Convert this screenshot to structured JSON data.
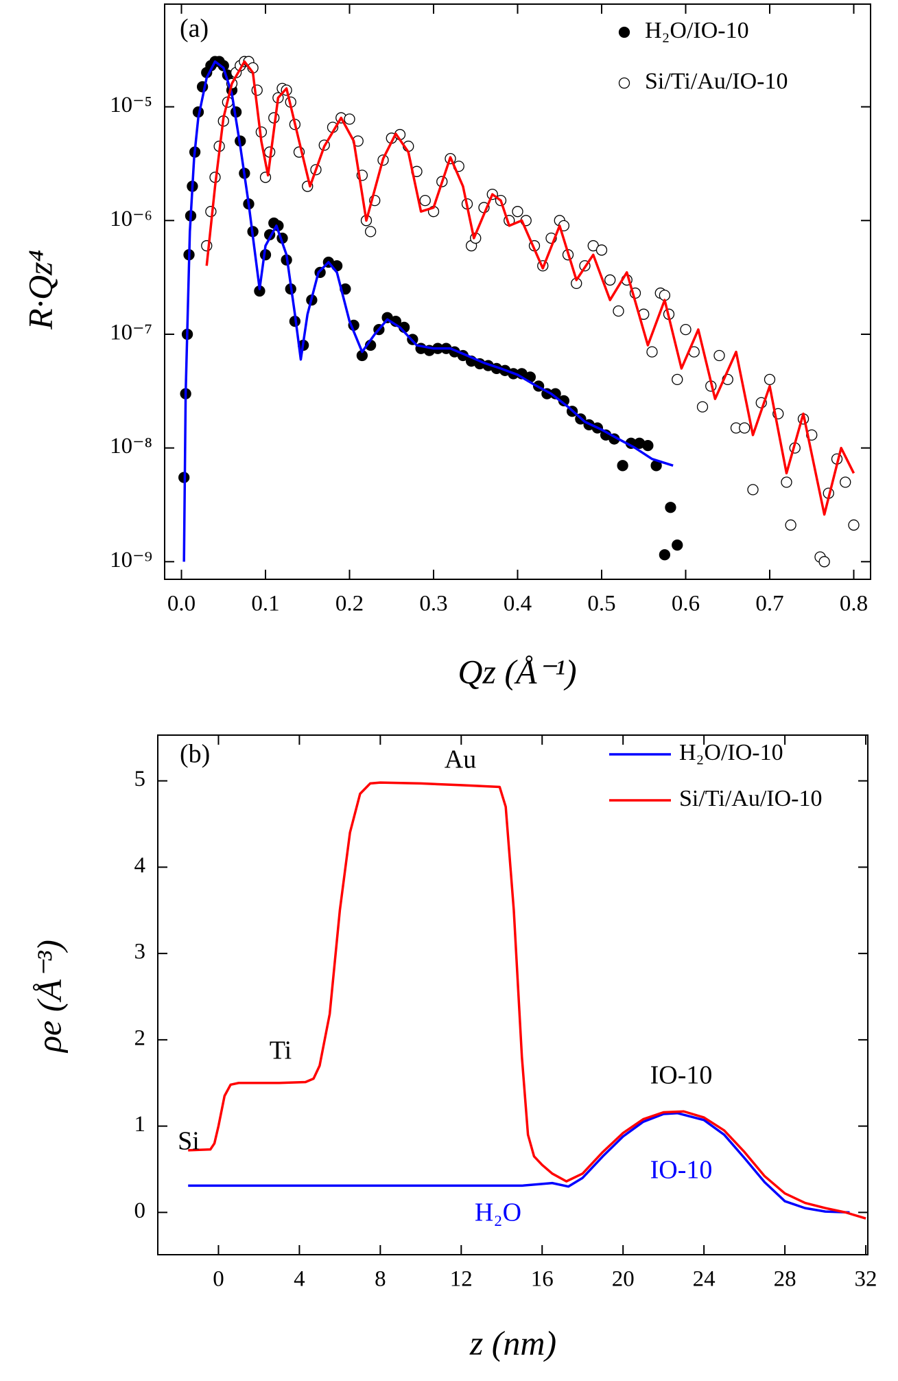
{
  "chart_data": [
    {
      "type": "scatter",
      "x_label": "Qz (Å⁻¹)",
      "y_label": "R·Qz⁴",
      "xlim": [
        -0.02,
        0.82
      ],
      "ylim": [
        7e-10,
        8e-05
      ],
      "y_log": true,
      "xticks": [
        {
          "value": 0,
          "label": "0.0"
        },
        0.1,
        0.2,
        0.3,
        0.4,
        0.5,
        0.6,
        0.7,
        0.8
      ],
      "yticks": [
        {
          "value": 1e-09,
          "label": "10⁻⁹"
        },
        {
          "value": 1e-08,
          "label": "10⁻⁸"
        },
        {
          "value": 1e-07,
          "label": "10⁻⁷"
        },
        {
          "value": 1e-06,
          "label": "10⁻⁶"
        },
        {
          "value": 1e-05,
          "label": "10⁻⁵"
        }
      ],
      "legend": "upper right",
      "annotations": [
        {
          "text": "(a)",
          "color": "#000000"
        }
      ],
      "series": [
        {
          "name": "H₂O/IO-10",
          "type": "scatter",
          "marker": "filled",
          "color": "#000000",
          "x": [
            0.003,
            0.005,
            0.007,
            0.009,
            0.011,
            0.013,
            0.016,
            0.02,
            0.025,
            0.03,
            0.035,
            0.04,
            0.045,
            0.05,
            0.055,
            0.06,
            0.065,
            0.07,
            0.075,
            0.08,
            0.085,
            0.093,
            0.1,
            0.105,
            0.11,
            0.115,
            0.12,
            0.125,
            0.13,
            0.135,
            0.145,
            0.155,
            0.165,
            0.175,
            0.185,
            0.195,
            0.205,
            0.215,
            0.225,
            0.235,
            0.245,
            0.255,
            0.265,
            0.275,
            0.285,
            0.295,
            0.305,
            0.315,
            0.325,
            0.335,
            0.345,
            0.355,
            0.365,
            0.375,
            0.385,
            0.395,
            0.405,
            0.415,
            0.425,
            0.435,
            0.445,
            0.455,
            0.465,
            0.475,
            0.485,
            0.495,
            0.505,
            0.515,
            0.525,
            0.535,
            0.545,
            0.555,
            0.565,
            0.575,
            0.582,
            0.59
          ],
          "values": [
            5.5e-09,
            3e-08,
            1e-07,
            5e-07,
            1.1e-06,
            2e-06,
            4e-06,
            9e-06,
            1.5e-05,
            2e-05,
            2.3e-05,
            2.5e-05,
            2.5e-05,
            2.3e-05,
            1.9e-05,
            1.4e-05,
            9e-06,
            5e-06,
            2.6e-06,
            1.4e-06,
            8e-07,
            2.4e-07,
            5e-07,
            7.5e-07,
            9.5e-07,
            9e-07,
            7e-07,
            4.5e-07,
            2.5e-07,
            1.3e-07,
            8e-08,
            2e-07,
            3.5e-07,
            4.3e-07,
            4e-07,
            2.5e-07,
            1.2e-07,
            6.5e-08,
            8e-08,
            1.1e-07,
            1.4e-07,
            1.3e-07,
            1.15e-07,
            9e-08,
            7.5e-08,
            7.2e-08,
            7.5e-08,
            7.5e-08,
            7e-08,
            6.5e-08,
            5.8e-08,
            5.5e-08,
            5.3e-08,
            5e-08,
            4.8e-08,
            4.5e-08,
            4.5e-08,
            4.2e-08,
            3.5e-08,
            3e-08,
            3e-08,
            2.6e-08,
            2.1e-08,
            1.8e-08,
            1.6e-08,
            1.5e-08,
            1.3e-08,
            1.2e-08,
            7e-09,
            1.1e-08,
            1.1e-08,
            1.05e-08,
            7e-09,
            1.15e-09,
            3e-09,
            1.4e-09
          ]
        },
        {
          "name": "Si/Ti/Au/IO-10",
          "type": "scatter",
          "marker": "open",
          "color": "#000000",
          "x": [
            0.03,
            0.035,
            0.04,
            0.045,
            0.05,
            0.055,
            0.06,
            0.065,
            0.07,
            0.075,
            0.08,
            0.085,
            0.09,
            0.095,
            0.1,
            0.105,
            0.11,
            0.115,
            0.12,
            0.125,
            0.13,
            0.135,
            0.14,
            0.15,
            0.16,
            0.17,
            0.18,
            0.19,
            0.2,
            0.21,
            0.215,
            0.22,
            0.225,
            0.23,
            0.24,
            0.25,
            0.26,
            0.27,
            0.28,
            0.29,
            0.3,
            0.31,
            0.32,
            0.33,
            0.34,
            0.345,
            0.35,
            0.36,
            0.37,
            0.38,
            0.39,
            0.4,
            0.41,
            0.42,
            0.43,
            0.44,
            0.45,
            0.455,
            0.46,
            0.47,
            0.48,
            0.49,
            0.5,
            0.51,
            0.52,
            0.53,
            0.54,
            0.55,
            0.56,
            0.57,
            0.575,
            0.58,
            0.59,
            0.6,
            0.61,
            0.62,
            0.63,
            0.64,
            0.65,
            0.66,
            0.67,
            0.68,
            0.69,
            0.7,
            0.71,
            0.72,
            0.725,
            0.73,
            0.74,
            0.75,
            0.76,
            0.765,
            0.77,
            0.78,
            0.79,
            0.8
          ],
          "values": [
            6e-07,
            1.2e-06,
            2.4e-06,
            4.5e-06,
            7.5e-06,
            1.1e-05,
            1.6e-05,
            2e-05,
            2.3e-05,
            2.5e-05,
            2.5e-05,
            2.2e-05,
            1.4e-05,
            6e-06,
            2.4e-06,
            4e-06,
            8e-06,
            1.2e-05,
            1.45e-05,
            1.4e-05,
            1.1e-05,
            7e-06,
            4e-06,
            2e-06,
            2.8e-06,
            4.6e-06,
            6.6e-06,
            8e-06,
            7.8e-06,
            5e-06,
            2.5e-06,
            1e-06,
            8e-07,
            1.5e-06,
            3.4e-06,
            5.3e-06,
            5.7e-06,
            4.5e-06,
            2.7e-06,
            1.5e-06,
            1.2e-06,
            2.2e-06,
            3.5e-06,
            3e-06,
            1.4e-06,
            6e-07,
            7e-07,
            1.3e-06,
            1.7e-06,
            1.5e-06,
            1e-06,
            1.2e-06,
            1e-06,
            6e-07,
            4e-07,
            7e-07,
            1e-06,
            9e-07,
            5e-07,
            2.8e-07,
            4e-07,
            6e-07,
            5.5e-07,
            3e-07,
            1.6e-07,
            3e-07,
            2.3e-07,
            1.5e-07,
            7e-08,
            2.3e-07,
            2.2e-07,
            1.5e-07,
            4e-08,
            1.1e-07,
            7e-08,
            2.3e-08,
            3.5e-08,
            6.5e-08,
            4e-08,
            1.5e-08,
            1.5e-08,
            4.3e-09,
            2.5e-08,
            4e-08,
            2e-08,
            5e-09,
            2.1e-09,
            1e-08,
            1.8e-08,
            1.3e-08,
            1.1e-09,
            1e-09,
            4e-09,
            8e-09,
            5e-09,
            2.1e-09
          ]
        },
        {
          "type": "line",
          "color": "#0000ff",
          "x": [
            0.003,
            0.005,
            0.01,
            0.015,
            0.02,
            0.03,
            0.04,
            0.05,
            0.06,
            0.07,
            0.08,
            0.093,
            0.1,
            0.113,
            0.125,
            0.135,
            0.142,
            0.15,
            0.163,
            0.175,
            0.185,
            0.2,
            0.215,
            0.23,
            0.245,
            0.26,
            0.28,
            0.3,
            0.32,
            0.34,
            0.36,
            0.38,
            0.4,
            0.42,
            0.44,
            0.46,
            0.48,
            0.5,
            0.52,
            0.54,
            0.56,
            0.585
          ],
          "values": [
            1e-09,
            3e-08,
            8e-07,
            3.5e-06,
            8e-06,
            1.8e-05,
            2.5e-05,
            2.2e-05,
            1.3e-05,
            4.5e-06,
            1.4e-06,
            2.5e-07,
            6e-07,
            9e-07,
            5e-07,
            1.5e-07,
            6e-08,
            1.5e-07,
            3.5e-07,
            4.3e-07,
            3.5e-07,
            1.3e-07,
            7e-08,
            1e-07,
            1.35e-07,
            1.15e-07,
            8e-08,
            7.5e-08,
            7.5e-08,
            6.5e-08,
            5.6e-08,
            5e-08,
            4.4e-08,
            3.6e-08,
            3e-08,
            2.3e-08,
            1.7e-08,
            1.45e-08,
            1.2e-08,
            1e-08,
            8e-09,
            7e-09
          ]
        },
        {
          "type": "line",
          "color": "#ff0000",
          "x": [
            0.03,
            0.04,
            0.05,
            0.06,
            0.075,
            0.085,
            0.095,
            0.103,
            0.115,
            0.125,
            0.14,
            0.153,
            0.17,
            0.19,
            0.205,
            0.22,
            0.24,
            0.255,
            0.27,
            0.285,
            0.3,
            0.32,
            0.335,
            0.348,
            0.37,
            0.38,
            0.39,
            0.405,
            0.43,
            0.45,
            0.47,
            0.49,
            0.51,
            0.53,
            0.555,
            0.575,
            0.595,
            0.615,
            0.635,
            0.66,
            0.68,
            0.7,
            0.72,
            0.74,
            0.765,
            0.785,
            0.8
          ],
          "values": [
            4e-07,
            2e-06,
            8e-06,
            1.6e-05,
            2.5e-05,
            2e-05,
            5e-06,
            2.5e-06,
            1.2e-05,
            1.45e-05,
            5e-06,
            2e-06,
            4.5e-06,
            8e-06,
            5e-06,
            1e-06,
            3.5e-06,
            5.8e-06,
            4e-06,
            1.2e-06,
            1.3e-06,
            3.6e-06,
            2e-06,
            7e-07,
            1.7e-06,
            1.5e-06,
            9e-07,
            1e-06,
            3.8e-07,
            9e-07,
            3e-07,
            5e-07,
            2e-07,
            3.5e-07,
            8e-08,
            2e-07,
            5e-08,
            1.1e-07,
            2.7e-08,
            7e-08,
            1.3e-08,
            3.5e-08,
            6e-09,
            2e-08,
            2.6e-09,
            1e-08,
            6e-09
          ]
        }
      ]
    },
    {
      "type": "line",
      "x_label": "z (nm)",
      "y_label": "ρe (Å⁻³)",
      "xlim": [
        -3.0,
        32.1
      ],
      "ylim": [
        -0.49,
        5.53
      ],
      "xticks": [
        0,
        4,
        8,
        12,
        16,
        20,
        24,
        28,
        32
      ],
      "yticks": [
        0,
        1,
        2,
        3,
        4,
        5
      ],
      "legend": "upper right",
      "annotations": [
        {
          "text": "(b)",
          "color": "#000000"
        },
        {
          "text": "Au",
          "color": "#000000"
        },
        {
          "text": "Ti",
          "color": "#000000"
        },
        {
          "text": "Si",
          "color": "#000000"
        },
        {
          "text": "IO-10",
          "color": "#000000"
        },
        {
          "text": "IO-10",
          "color": "#0000ff"
        },
        {
          "text": "H₂O",
          "color": "#0000ff"
        }
      ],
      "series": [
        {
          "name": "H₂O/IO-10",
          "type": "line",
          "color": "#0000ff",
          "x": [
            -1.5,
            15,
            16.5,
            17.3,
            18,
            19,
            20,
            21,
            22,
            22.7,
            24,
            25,
            26,
            27,
            28,
            29,
            30,
            31.2
          ],
          "values": [
            0.31,
            0.31,
            0.34,
            0.3,
            0.4,
            0.65,
            0.88,
            1.05,
            1.14,
            1.15,
            1.07,
            0.9,
            0.63,
            0.35,
            0.13,
            0.05,
            0.01,
            0.0
          ]
        },
        {
          "name": "Si/Ti/Au/IO-10",
          "type": "line",
          "color": "#ff0000",
          "x": [
            -1.5,
            -0.4,
            -0.2,
            0,
            0.3,
            0.6,
            1,
            3,
            4.3,
            4.7,
            5,
            5.5,
            6,
            6.5,
            7,
            7.5,
            8,
            10,
            12,
            13.9,
            14.2,
            14.6,
            15,
            15.3,
            15.6,
            16,
            16.5,
            17.2,
            18,
            19,
            20,
            21,
            22,
            23,
            24,
            25,
            26,
            27,
            28,
            29,
            30,
            31,
            32
          ],
          "values": [
            0.72,
            0.73,
            0.8,
            1.0,
            1.35,
            1.48,
            1.5,
            1.5,
            1.51,
            1.55,
            1.7,
            2.3,
            3.5,
            4.4,
            4.85,
            4.97,
            4.98,
            4.97,
            4.95,
            4.93,
            4.7,
            3.5,
            1.8,
            0.9,
            0.65,
            0.55,
            0.45,
            0.36,
            0.45,
            0.7,
            0.92,
            1.08,
            1.16,
            1.17,
            1.1,
            0.95,
            0.7,
            0.42,
            0.22,
            0.11,
            0.05,
            0.0,
            -0.07
          ]
        }
      ]
    }
  ]
}
